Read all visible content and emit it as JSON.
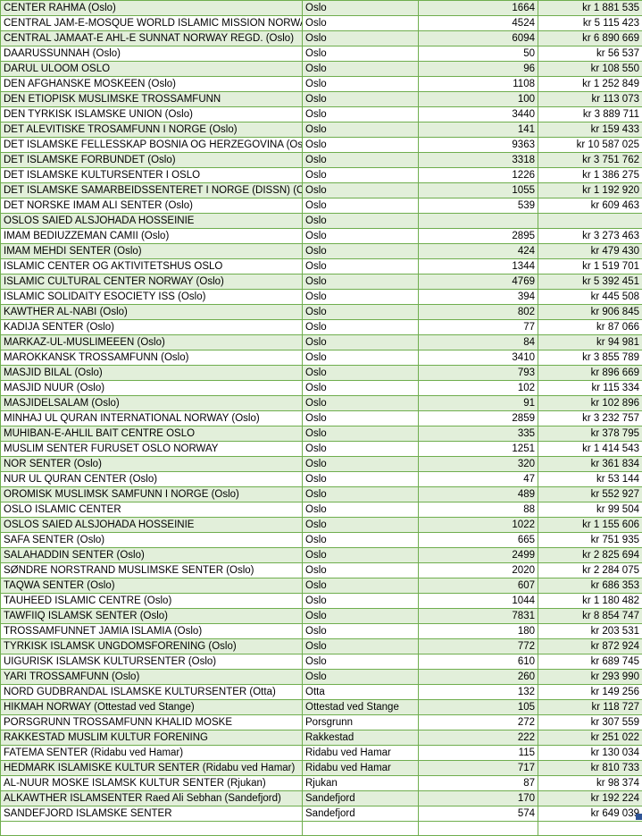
{
  "styles": {
    "border_color": "#6fae4e",
    "fill_green": "#e2efda",
    "fill_white": "#ffffff",
    "text_color": "#000000",
    "handle_color": "#2f5496"
  },
  "currency_prefix": "kr",
  "table": {
    "rows": [
      [
        "CENTER RAHMA (Oslo)",
        "Oslo",
        "1664",
        "kr 1 881 535"
      ],
      [
        "CENTRAL JAM-E-MOSQUE WORLD ISLAMIC MISSION NORWAY",
        "Oslo",
        "4524",
        "kr 5 115 423"
      ],
      [
        "CENTRAL JAMAAT-E AHL-E SUNNAT NORWAY REGD. (Oslo)",
        "Oslo",
        "6094",
        "kr 6 890 669"
      ],
      [
        "DAARUSSUNNAH (Oslo)",
        "Oslo",
        "50",
        "kr 56 537"
      ],
      [
        "DARUL ULOOM OSLO",
        "Oslo",
        "96",
        "kr 108 550"
      ],
      [
        "DEN AFGHANSKE MOSKEEN (Oslo)",
        "Oslo",
        "1108",
        "kr 1 252 849"
      ],
      [
        "DEN ETIOPISK MUSLIMSKE TROSSAMFUNN",
        "Oslo",
        "100",
        "kr 113 073"
      ],
      [
        "DEN TYRKISK ISLAMSKE UNION (Oslo)",
        "Oslo",
        "3440",
        "kr 3 889 711"
      ],
      [
        "DET ALEVITISKE TROSAMFUNN I NORGE (Oslo)",
        "Oslo",
        "141",
        "kr 159 433"
      ],
      [
        "DET ISLAMSKE FELLESSKAP BOSNIA OG HERZEGOVINA (Oslo)",
        "Oslo",
        "9363",
        "kr 10 587 025"
      ],
      [
        "DET ISLAMSKE FORBUNDET (Oslo)",
        "Oslo",
        "3318",
        "kr 3 751 762"
      ],
      [
        "DET ISLAMSKE KULTURSENTER I OSLO",
        "Oslo",
        "1226",
        "kr 1 386 275"
      ],
      [
        "DET ISLAMSKE SAMARBEIDSSENTERET I NORGE (DISSN) (Oslo)",
        "Oslo",
        "1055",
        "kr 1 192 920"
      ],
      [
        "DET NORSKE IMAM ALI SENTER (Oslo)",
        "Oslo",
        "539",
        "kr 609 463"
      ],
      [
        "OSLOS SAIED ALSJOHADA HOSSEINIE",
        "Oslo",
        "",
        ""
      ],
      [
        "IMAM BEDIUZZEMAN CAMII (Oslo)",
        "Oslo",
        "2895",
        "kr 3 273 463"
      ],
      [
        "IMAM MEHDI SENTER (Oslo)",
        "Oslo",
        "424",
        "kr 479 430"
      ],
      [
        "ISLAMIC CENTER OG AKTIVITETSHUS OSLO",
        "Oslo",
        "1344",
        "kr 1 519 701"
      ],
      [
        "ISLAMIC CULTURAL CENTER NORWAY (Oslo)",
        "Oslo",
        "4769",
        "kr 5 392 451"
      ],
      [
        "ISLAMIC SOLIDAITY ESOCIETY ISS (Oslo)",
        "Oslo",
        "394",
        "kr 445 508"
      ],
      [
        "KAWTHER AL-NABI (Oslo)",
        "Oslo",
        "802",
        "kr 906 845"
      ],
      [
        "KADIJA SENTER (Oslo)",
        "Oslo",
        "77",
        "kr 87 066"
      ],
      [
        "MARKAZ-UL-MUSLIMEEEN (Oslo)",
        "Oslo",
        "84",
        "kr 94 981"
      ],
      [
        "MAROKKANSK TROSSAMFUNN (Oslo)",
        "Oslo",
        "3410",
        "kr 3 855 789"
      ],
      [
        "MASJID BILAL (Oslo)",
        "Oslo",
        "793",
        "kr 896 669"
      ],
      [
        "MASJID NUUR (Oslo)",
        "Oslo",
        "102",
        "kr 115 334"
      ],
      [
        "MASJIDELSALAM (Oslo)",
        "Oslo",
        "91",
        "kr 102 896"
      ],
      [
        "MINHAJ UL QURAN INTERNATIONAL NORWAY (Oslo)",
        "Oslo",
        "2859",
        "kr 3 232 757"
      ],
      [
        "MUHIBAN-E-AHLIL BAIT CENTRE OSLO",
        "Oslo",
        "335",
        "kr 378 795"
      ],
      [
        "MUSLIM SENTER FURUSET OSLO NORWAY",
        "Oslo",
        "1251",
        "kr 1 414 543"
      ],
      [
        "NOR SENTER (Oslo)",
        "Oslo",
        "320",
        "kr 361 834"
      ],
      [
        "NUR UL QURAN CENTER (Oslo)",
        "Oslo",
        "47",
        "kr 53 144"
      ],
      [
        "OROMISK MUSLIMSK SAMFUNN I NORGE (Oslo)",
        "Oslo",
        "489",
        "kr 552 927"
      ],
      [
        "OSLO ISLAMIC CENTER",
        "Oslo",
        "88",
        "kr 99 504"
      ],
      [
        "OSLOS SAIED ALSJOHADA HOSSEINIE",
        "Oslo",
        "1022",
        "kr 1 155 606"
      ],
      [
        "SAFA SENTER (Oslo)",
        "Oslo",
        "665",
        "kr 751 935"
      ],
      [
        "SALAHADDIN SENTER (Oslo)",
        "Oslo",
        "2499",
        "kr 2 825 694"
      ],
      [
        "SØNDRE NORSTRAND MUSLIMSKE SENTER (Oslo)",
        "Oslo",
        "2020",
        "kr 2 284 075"
      ],
      [
        "TAQWA SENTER (Oslo)",
        "Oslo",
        "607",
        "kr 686 353"
      ],
      [
        "TAUHEED ISLAMIC CENTRE (Oslo)",
        "Oslo",
        "1044",
        "kr 1 180 482"
      ],
      [
        "TAWFIIQ ISLAMSK SENTER (Oslo)",
        "Oslo",
        "7831",
        "kr 8 854 747"
      ],
      [
        "TROSSAMFUNNET JAMIA ISLAMIA (Oslo)",
        "Oslo",
        "180",
        "kr 203 531"
      ],
      [
        "TYRKISK ISLAMSK UNGDOMSFORENING (Oslo)",
        "Oslo",
        "772",
        "kr 872 924"
      ],
      [
        "UIGURISK ISLAMSK KULTURSENTER (Oslo)",
        "Oslo",
        "610",
        "kr 689 745"
      ],
      [
        "YARI TROSSAMFUNN (Oslo)",
        "Oslo",
        "260",
        "kr 293 990"
      ],
      [
        "NORD GUDBRANDAL ISLAMSKE KULTURSENTER (Otta)",
        "Otta",
        "132",
        "kr 149 256"
      ],
      [
        "HIKMAH NORWAY (Ottestad ved Stange)",
        "Ottestad ved Stange",
        "105",
        "kr 118 727"
      ],
      [
        "PORSGRUNN TROSSAMFUNN KHALID MOSKE",
        "Porsgrunn",
        "272",
        "kr 307 559"
      ],
      [
        "RAKKESTAD MUSLIM KULTUR FORENING",
        "Rakkestad",
        "222",
        "kr 251 022"
      ],
      [
        "FATEMA SENTER (Ridabu ved Hamar)",
        "Ridabu ved Hamar",
        "115",
        "kr 130 034"
      ],
      [
        "HEDMARK ISLAMISKE KULTUR SENTER (Ridabu ved Hamar)",
        "Ridabu ved Hamar",
        "717",
        "kr 810 733"
      ],
      [
        "AL-NUUR MOSKE ISLAMSK KULTUR SENTER (Rjukan)",
        "Rjukan",
        "87",
        "kr 98 374"
      ],
      [
        "ALKAWTHER ISLAMSENTER Raed Ali Sebhan (Sandefjord)",
        "Sandefjord",
        "170",
        "kr 192 224"
      ],
      [
        "SANDEFJORD ISLAMSKE SENTER",
        "Sandefjord",
        "574",
        "kr 649 039"
      ]
    ]
  }
}
